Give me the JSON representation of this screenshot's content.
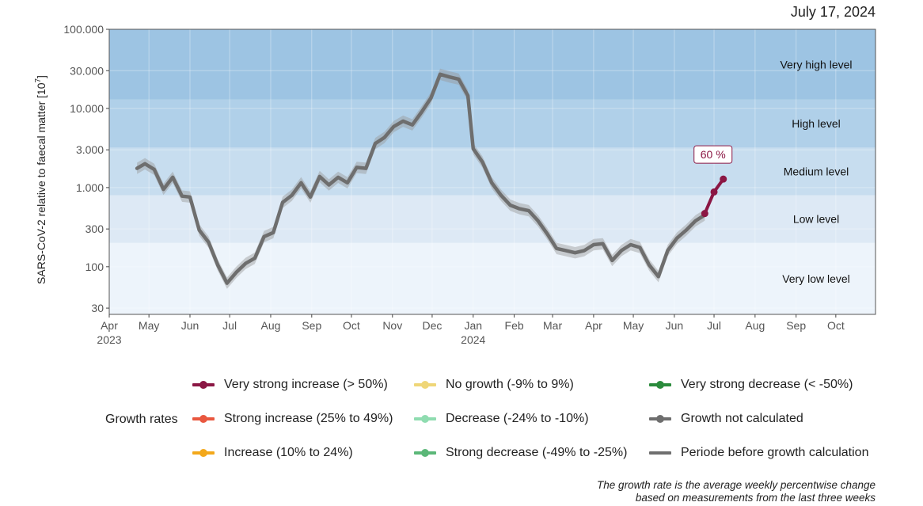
{
  "date_label": "July 17, 2024",
  "chart_data": {
    "type": "line",
    "x_type": "date",
    "ylabel": "SARS-CoV-2 relative to faecal matter [10",
    "ylabel_sup": "7",
    "ylabel_close": "]",
    "yscale": "log",
    "ylim": [
      25,
      100000
    ],
    "y_ticks": [
      30,
      100,
      300,
      1000,
      3000,
      10000,
      30000,
      100000
    ],
    "y_tick_labels": [
      "30",
      "100",
      "300",
      "1.000",
      "3.000",
      "10.000",
      "30.000",
      "100.000"
    ],
    "xlim": [
      "2023-04-01",
      "2024-10-31"
    ],
    "x_ticks": [
      "2023-04-01",
      "2023-05-01",
      "2023-06-01",
      "2023-07-01",
      "2023-08-01",
      "2023-09-01",
      "2023-10-01",
      "2023-11-01",
      "2023-12-01",
      "2024-01-01",
      "2024-02-01",
      "2024-03-01",
      "2024-04-01",
      "2024-05-01",
      "2024-06-01",
      "2024-07-01",
      "2024-08-01",
      "2024-09-01",
      "2024-10-01"
    ],
    "x_tick_labels": [
      "Apr",
      "May",
      "Jun",
      "Jul",
      "Aug",
      "Sep",
      "Oct",
      "Nov",
      "Dec",
      "Jan",
      "Feb",
      "Mar",
      "Apr",
      "May",
      "Jun",
      "Jul",
      "Aug",
      "Sep",
      "Oct"
    ],
    "x_year_labels": [
      {
        "date": "2023-04-01",
        "label": "2023"
      },
      {
        "date": "2024-01-01",
        "label": "2024"
      }
    ],
    "grid": true,
    "bands": [
      {
        "label": "Very low level",
        "from": 25,
        "to": 200,
        "color": "#edf4fb"
      },
      {
        "label": "Low level",
        "from": 200,
        "to": 800,
        "color": "#dde9f5"
      },
      {
        "label": "Medium level",
        "from": 800,
        "to": 3200,
        "color": "#c7ddef"
      },
      {
        "label": "High level",
        "from": 3200,
        "to": 13000,
        "color": "#b0d0e9"
      },
      {
        "label": "Very high level",
        "from": 13000,
        "to": 100000,
        "color": "#9dc4e3"
      }
    ],
    "series": [
      {
        "role": "before",
        "color": "#6e6e6e",
        "points": [
          [
            "2023-04-22",
            1750
          ],
          [
            "2023-04-28",
            2000
          ],
          [
            "2023-05-05",
            1700
          ],
          [
            "2023-05-12",
            950
          ],
          [
            "2023-05-19",
            1350
          ],
          [
            "2023-05-26",
            780
          ],
          [
            "2023-06-01",
            760
          ],
          [
            "2023-06-08",
            290
          ],
          [
            "2023-06-15",
            205
          ],
          [
            "2023-06-22",
            105
          ],
          [
            "2023-06-29",
            62
          ],
          [
            "2023-07-06",
            85
          ],
          [
            "2023-07-13",
            110
          ],
          [
            "2023-07-20",
            128
          ],
          [
            "2023-07-27",
            240
          ],
          [
            "2023-08-03",
            270
          ],
          [
            "2023-08-10",
            650
          ],
          [
            "2023-08-17",
            800
          ],
          [
            "2023-08-24",
            1150
          ],
          [
            "2023-08-31",
            760
          ],
          [
            "2023-09-07",
            1380
          ],
          [
            "2023-09-14",
            1080
          ],
          [
            "2023-09-21",
            1350
          ],
          [
            "2023-09-28",
            1150
          ],
          [
            "2023-10-05",
            1800
          ],
          [
            "2023-10-12",
            1750
          ],
          [
            "2023-10-19",
            3600
          ],
          [
            "2023-10-26",
            4300
          ],
          [
            "2023-11-02",
            5900
          ],
          [
            "2023-11-09",
            6900
          ],
          [
            "2023-11-16",
            6200
          ],
          [
            "2023-11-23",
            9000
          ],
          [
            "2023-11-30",
            13500
          ],
          [
            "2023-12-07",
            27000
          ],
          [
            "2023-12-14",
            25000
          ],
          [
            "2023-12-21",
            23500
          ],
          [
            "2023-12-28",
            14500
          ],
          [
            "2024-01-01",
            3100
          ],
          [
            "2024-01-08",
            2100
          ],
          [
            "2024-01-15",
            1150
          ],
          [
            "2024-01-22",
            800
          ],
          [
            "2024-01-29",
            600
          ],
          [
            "2024-02-05",
            540
          ],
          [
            "2024-02-12",
            510
          ],
          [
            "2024-02-19",
            380
          ],
          [
            "2024-02-26",
            260
          ],
          [
            "2024-03-04",
            170
          ],
          [
            "2024-03-11",
            160
          ],
          [
            "2024-03-18",
            150
          ],
          [
            "2024-03-25",
            160
          ],
          [
            "2024-04-01",
            190
          ],
          [
            "2024-04-08",
            195
          ],
          [
            "2024-04-15",
            120
          ],
          [
            "2024-04-22",
            160
          ],
          [
            "2024-04-29",
            190
          ],
          [
            "2024-05-06",
            175
          ],
          [
            "2024-05-13",
            105
          ],
          [
            "2024-05-20",
            75
          ],
          [
            "2024-05-27",
            160
          ],
          [
            "2024-06-03",
            230
          ],
          [
            "2024-06-10",
            290
          ],
          [
            "2024-06-17",
            380
          ],
          [
            "2024-06-24",
            450
          ]
        ]
      },
      {
        "role": "latest",
        "color": "#8b1744",
        "label": "60 %",
        "points": [
          [
            "2024-06-24",
            470
          ],
          [
            "2024-07-01",
            880
          ],
          [
            "2024-07-08",
            1280
          ]
        ]
      }
    ],
    "legend": {
      "title": "Growth rates",
      "position": "bottom",
      "items": [
        {
          "label": "Very strong increase (> 50%)",
          "color": "#8b1744",
          "style": "line-point"
        },
        {
          "label": "Strong increase (25% to 49%)",
          "color": "#e9573f",
          "style": "line-point"
        },
        {
          "label": "Increase (10% to 24%)",
          "color": "#f3a81b",
          "style": "line-point"
        },
        {
          "label": "No growth (-9% to 9%)",
          "color": "#efd678",
          "style": "line-point"
        },
        {
          "label": "Decrease (-24% to -10%)",
          "color": "#8fdcb0",
          "style": "line-point"
        },
        {
          "label": "Strong decrease (-49% to -25%)",
          "color": "#5bb778",
          "style": "line-point"
        },
        {
          "label": "Very strong decrease (< -50%)",
          "color": "#2b8b3c",
          "style": "line-point"
        },
        {
          "label": "Growth not calculated",
          "color": "#6e6e6e",
          "style": "line-point"
        },
        {
          "label": "Periode before growth calculation",
          "color": "#6e6e6e",
          "style": "line"
        }
      ]
    }
  },
  "caption": {
    "line1": "The growth rate is the average weekly percentwise change",
    "line2": "based on measurements from the last three weeks"
  }
}
